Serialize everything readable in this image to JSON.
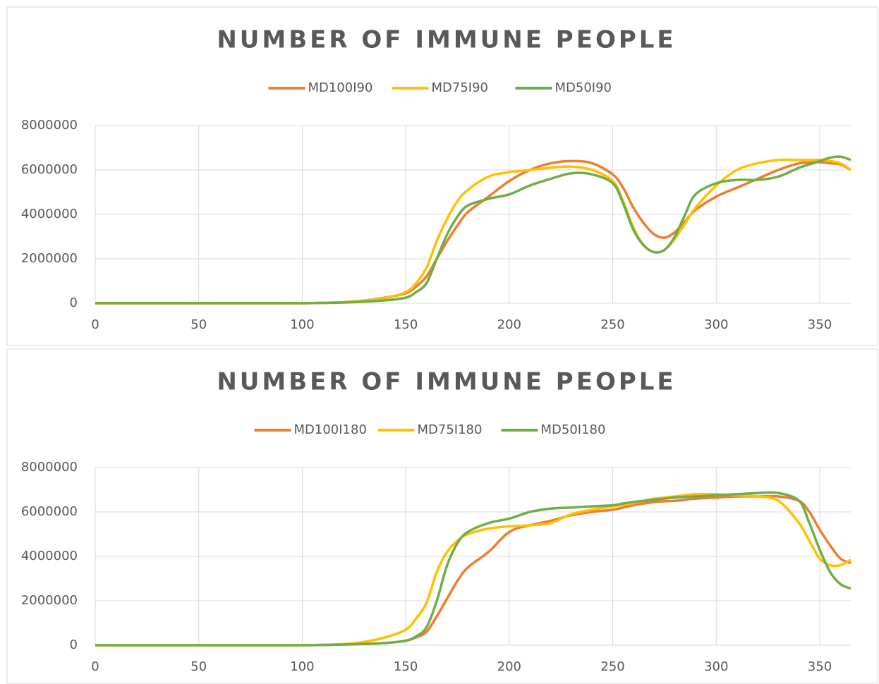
{
  "chart_data": [
    {
      "type": "line",
      "title": "NUMBER OF IMMUNE PEOPLE",
      "x": [
        0,
        10,
        20,
        30,
        40,
        50,
        60,
        70,
        80,
        90,
        100,
        110,
        120,
        130,
        140,
        150,
        155,
        160,
        165,
        170,
        175,
        180,
        190,
        200,
        210,
        220,
        230,
        240,
        250,
        255,
        260,
        265,
        270,
        275,
        280,
        285,
        290,
        300,
        310,
        320,
        330,
        340,
        345,
        350,
        355,
        360,
        365
      ],
      "series": [
        {
          "name": "MD100I90",
          "color": "#ed7d31",
          "values": [
            0,
            0,
            0,
            0,
            0,
            0,
            0,
            0,
            0,
            0,
            0,
            20000,
            50000,
            120000,
            250000,
            450000,
            750000,
            1200000,
            2000000,
            2800000,
            3500000,
            4100000,
            4800000,
            5500000,
            6000000,
            6300000,
            6400000,
            6300000,
            5800000,
            5200000,
            4300000,
            3600000,
            3100000,
            2950000,
            3200000,
            3700000,
            4200000,
            4800000,
            5200000,
            5600000,
            6000000,
            6300000,
            6330000,
            6350000,
            6300000,
            6250000,
            6000000
          ]
        },
        {
          "name": "MD75I90",
          "color": "#ffc000",
          "values": [
            0,
            0,
            0,
            0,
            0,
            0,
            0,
            0,
            0,
            0,
            0,
            20000,
            50000,
            110000,
            230000,
            500000,
            900000,
            1600000,
            2800000,
            3800000,
            4600000,
            5100000,
            5700000,
            5900000,
            6000000,
            6100000,
            6150000,
            6000000,
            5500000,
            4600000,
            3400000,
            2600000,
            2300000,
            2400000,
            2900000,
            3600000,
            4300000,
            5300000,
            6000000,
            6300000,
            6450000,
            6450000,
            6450000,
            6450000,
            6400000,
            6300000,
            6000000
          ]
        },
        {
          "name": "MD50I90",
          "color": "#70ad47",
          "values": [
            0,
            0,
            0,
            0,
            0,
            0,
            0,
            0,
            0,
            0,
            0,
            10000,
            30000,
            70000,
            130000,
            250000,
            500000,
            900000,
            2000000,
            3100000,
            3900000,
            4400000,
            4700000,
            4900000,
            5300000,
            5600000,
            5850000,
            5800000,
            5400000,
            4500000,
            3300000,
            2600000,
            2300000,
            2400000,
            3000000,
            4000000,
            4900000,
            5400000,
            5550000,
            5550000,
            5700000,
            6100000,
            6250000,
            6400000,
            6550000,
            6600000,
            6450000
          ]
        }
      ],
      "xlim": [
        0,
        365
      ],
      "xticks": [
        0,
        50,
        100,
        150,
        200,
        250,
        300,
        350
      ],
      "ylim": [
        0,
        8000000
      ],
      "yticks": [
        0,
        2000000,
        4000000,
        6000000,
        8000000
      ],
      "grid": true,
      "legend": "top"
    },
    {
      "type": "line",
      "title": "NUMBER OF IMMUNE PEOPLE",
      "x": [
        0,
        10,
        20,
        30,
        40,
        50,
        60,
        70,
        80,
        90,
        100,
        110,
        120,
        130,
        140,
        150,
        155,
        160,
        165,
        170,
        175,
        180,
        190,
        200,
        210,
        220,
        230,
        240,
        250,
        255,
        260,
        265,
        270,
        275,
        280,
        285,
        290,
        300,
        310,
        320,
        330,
        340,
        345,
        350,
        355,
        360,
        365
      ],
      "series": [
        {
          "name": "MD100I180",
          "color": "#ed7d31",
          "values": [
            0,
            0,
            0,
            0,
            0,
            0,
            0,
            0,
            0,
            0,
            0,
            10000,
            30000,
            60000,
            100000,
            200000,
            350000,
            600000,
            1300000,
            2100000,
            2900000,
            3500000,
            4200000,
            5100000,
            5400000,
            5600000,
            5850000,
            6000000,
            6100000,
            6200000,
            6300000,
            6380000,
            6450000,
            6480000,
            6500000,
            6550000,
            6600000,
            6650000,
            6700000,
            6700000,
            6700000,
            6500000,
            6000000,
            5200000,
            4500000,
            3900000,
            3700000
          ]
        },
        {
          "name": "MD75I180",
          "color": "#ffc000",
          "values": [
            0,
            0,
            0,
            0,
            0,
            0,
            0,
            0,
            0,
            0,
            0,
            20000,
            50000,
            150000,
            350000,
            700000,
            1200000,
            1900000,
            3300000,
            4200000,
            4700000,
            5000000,
            5250000,
            5350000,
            5400000,
            5500000,
            5900000,
            6100000,
            6250000,
            6320000,
            6400000,
            6500000,
            6600000,
            6650000,
            6700000,
            6750000,
            6800000,
            6800000,
            6750000,
            6700000,
            6500000,
            5500000,
            4700000,
            3900000,
            3600000,
            3600000,
            3850000
          ]
        },
        {
          "name": "MD50I180",
          "color": "#70ad47",
          "values": [
            0,
            0,
            0,
            0,
            0,
            0,
            0,
            0,
            0,
            0,
            0,
            10000,
            30000,
            60000,
            100000,
            200000,
            400000,
            800000,
            2000000,
            3600000,
            4600000,
            5100000,
            5500000,
            5700000,
            6000000,
            6150000,
            6200000,
            6250000,
            6300000,
            6380000,
            6450000,
            6500000,
            6550000,
            6600000,
            6650000,
            6680000,
            6700000,
            6750000,
            6800000,
            6850000,
            6850000,
            6500000,
            5500000,
            4300000,
            3300000,
            2750000,
            2550000
          ]
        }
      ],
      "xlim": [
        0,
        365
      ],
      "xticks": [
        0,
        50,
        100,
        150,
        200,
        250,
        300,
        350
      ],
      "ylim": [
        0,
        8000000
      ],
      "yticks": [
        0,
        2000000,
        4000000,
        6000000,
        8000000
      ],
      "grid": true,
      "legend": "top"
    }
  ]
}
